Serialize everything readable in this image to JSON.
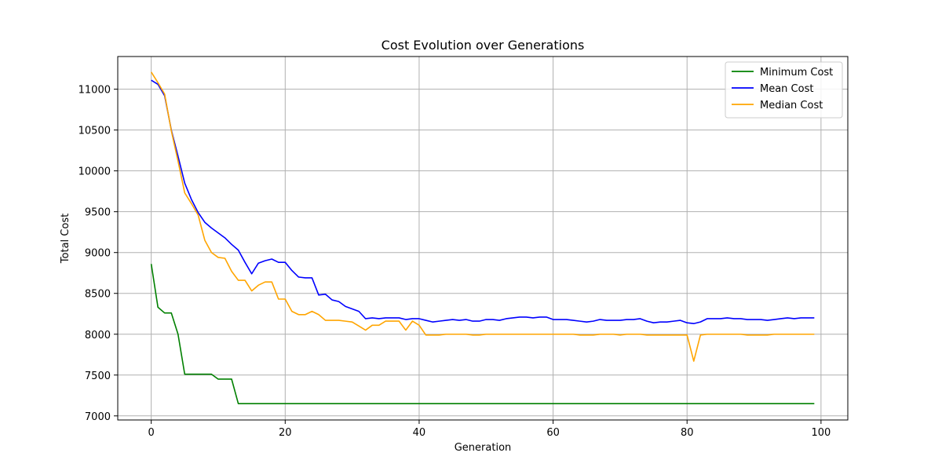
{
  "chart_data": {
    "type": "line",
    "title": "Cost Evolution over Generations",
    "xlabel": "Generation",
    "ylabel": "Total Cost",
    "xlim": [
      -5,
      104
    ],
    "ylim": [
      6950,
      11400
    ],
    "xticks": [
      0,
      20,
      40,
      60,
      80,
      100
    ],
    "yticks": [
      7000,
      7500,
      8000,
      8500,
      9000,
      9500,
      10000,
      10500,
      11000
    ],
    "grid": true,
    "legend_position": "top-right",
    "series": [
      {
        "name": "Minimum Cost",
        "color": "#008000",
        "values": [
          8860,
          8330,
          8260,
          8260,
          8000,
          7510,
          7510,
          7510,
          7510,
          7510,
          7450,
          7450,
          7450,
          7150,
          7150,
          7150,
          7150,
          7150,
          7150,
          7150,
          7150,
          7150,
          7150,
          7150,
          7150,
          7150,
          7150,
          7150,
          7150,
          7150,
          7150,
          7150,
          7150,
          7150,
          7150,
          7150,
          7150,
          7150,
          7150,
          7150,
          7150,
          7150,
          7150,
          7150,
          7150,
          7150,
          7150,
          7150,
          7150,
          7150,
          7150,
          7150,
          7150,
          7150,
          7150,
          7150,
          7150,
          7150,
          7150,
          7150,
          7150,
          7150,
          7150,
          7150,
          7150,
          7150,
          7150,
          7150,
          7150,
          7150,
          7150,
          7150,
          7150,
          7150,
          7150,
          7150,
          7150,
          7150,
          7150,
          7150,
          7150,
          7150,
          7150,
          7150,
          7150,
          7150,
          7150,
          7150,
          7150,
          7150,
          7150,
          7150,
          7150,
          7150,
          7150,
          7150,
          7150,
          7150,
          7150,
          7150
        ]
      },
      {
        "name": "Mean Cost",
        "color": "#0000ff",
        "values": [
          11110,
          11060,
          10920,
          10500,
          10180,
          9850,
          9650,
          9490,
          9370,
          9300,
          9240,
          9180,
          9100,
          9030,
          8880,
          8740,
          8870,
          8900,
          8920,
          8880,
          8880,
          8780,
          8700,
          8690,
          8690,
          8480,
          8490,
          8420,
          8400,
          8340,
          8310,
          8280,
          8190,
          8200,
          8190,
          8200,
          8200,
          8200,
          8180,
          8190,
          8190,
          8170,
          8150,
          8160,
          8170,
          8180,
          8170,
          8180,
          8160,
          8160,
          8180,
          8180,
          8170,
          8190,
          8200,
          8210,
          8210,
          8200,
          8210,
          8210,
          8180,
          8180,
          8180,
          8170,
          8160,
          8150,
          8160,
          8180,
          8170,
          8170,
          8170,
          8180,
          8180,
          8190,
          8160,
          8140,
          8150,
          8150,
          8160,
          8170,
          8140,
          8130,
          8150,
          8190,
          8190,
          8190,
          8200,
          8190,
          8190,
          8180,
          8180,
          8180,
          8170,
          8180,
          8190,
          8200,
          8190,
          8200,
          8200,
          8200
        ]
      },
      {
        "name": "Median Cost",
        "color": "#ffa500",
        "values": [
          11210,
          11080,
          10940,
          10490,
          10120,
          9730,
          9600,
          9460,
          9150,
          9000,
          8940,
          8930,
          8770,
          8660,
          8660,
          8530,
          8600,
          8640,
          8640,
          8430,
          8430,
          8280,
          8240,
          8240,
          8280,
          8240,
          8170,
          8170,
          8170,
          8160,
          8150,
          8100,
          8050,
          8110,
          8110,
          8160,
          8160,
          8160,
          8050,
          8160,
          8110,
          7990,
          7990,
          7990,
          8000,
          8000,
          8000,
          8000,
          7990,
          7990,
          8000,
          8000,
          8000,
          8000,
          8000,
          8000,
          8000,
          8000,
          8000,
          8000,
          8000,
          8000,
          8000,
          8000,
          7990,
          7990,
          7990,
          8000,
          8000,
          8000,
          7990,
          8000,
          8000,
          8000,
          7990,
          7990,
          7990,
          7990,
          7990,
          7990,
          7990,
          7670,
          7990,
          8000,
          8000,
          8000,
          8000,
          8000,
          8000,
          7990,
          7990,
          7990,
          7990,
          8000,
          8000,
          8000,
          8000,
          8000,
          8000,
          8000
        ]
      }
    ]
  }
}
